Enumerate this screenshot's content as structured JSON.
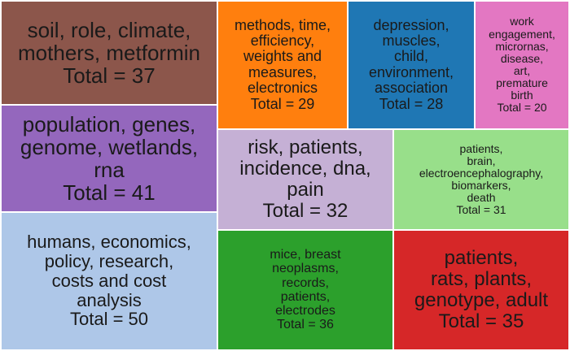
{
  "chart_data": {
    "type": "treemap",
    "total_prefix": "Total = ",
    "tiles": [
      {
        "label": "soil, role, climate,\nmothers, metformin",
        "value": 37,
        "color": "#8c564b"
      },
      {
        "label": "methods, time,\nefficiency,\nweights and\nmeasures,\nelectronics",
        "value": 29,
        "color": "#ff7f0e"
      },
      {
        "label": "depression,\nmuscles,\nchild,\nenvironment,\nassociation",
        "value": 28,
        "color": "#1f77b4"
      },
      {
        "label": "work\nengagement,\nmicrornas,\ndisease,\nart,\npremature\nbirth",
        "value": 20,
        "color": "#e377c2"
      },
      {
        "label": "population, genes,\ngenome, wetlands,\nrna",
        "value": 41,
        "color": "#9467bd"
      },
      {
        "label": "risk, patients,\nincidence, dna,\npain",
        "value": 32,
        "color": "#c5b0d5"
      },
      {
        "label": "patients,\nbrain,\nelectroencephalography,\nbiomarkers,\ndeath",
        "value": 31,
        "color": "#98df8a"
      },
      {
        "label": "humans, economics,\npolicy, research,\ncosts and cost\nanalysis",
        "value": 50,
        "color": "#aec7e8"
      },
      {
        "label": "mice, breast\nneoplasms,\nrecords,\npatients,\nelectrodes",
        "value": 36,
        "color": "#2ca02c"
      },
      {
        "label": "patients,\nrats, plants,\ngenotype, adult",
        "value": 35,
        "color": "#d62728"
      }
    ]
  }
}
